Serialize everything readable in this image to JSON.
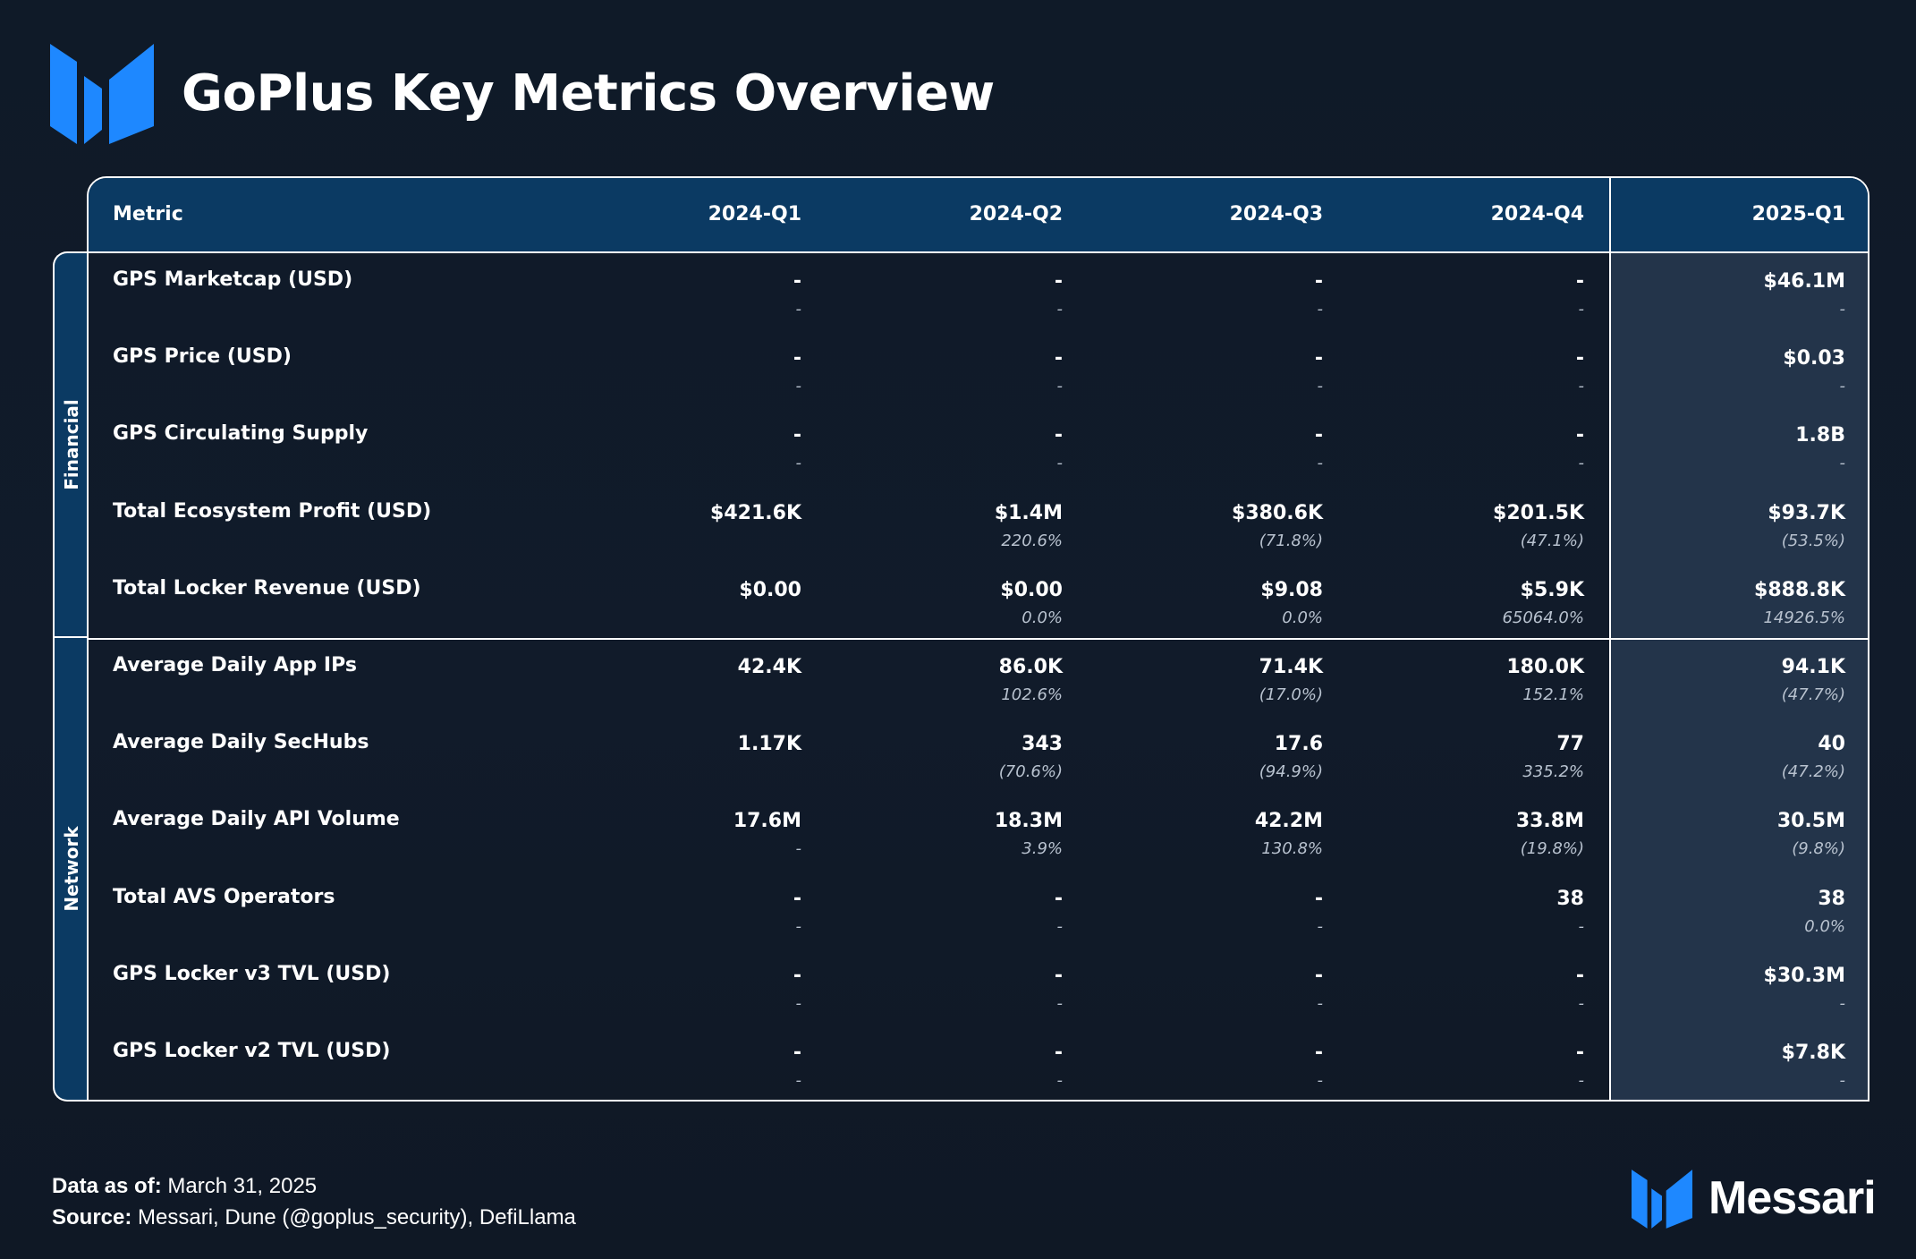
{
  "title": "GoPlus Key Metrics Overview",
  "header": {
    "metric": "Metric",
    "periods": [
      "2024-Q1",
      "2024-Q2",
      "2024-Q3",
      "2024-Q4",
      "2025-Q1"
    ]
  },
  "groups": {
    "financial": "Financial",
    "network": "Network"
  },
  "rows": [
    {
      "label": "GPS Marketcap (USD)",
      "cells": [
        {
          "v": "-",
          "c": "-"
        },
        {
          "v": "-",
          "c": "-"
        },
        {
          "v": "-",
          "c": "-"
        },
        {
          "v": "-",
          "c": "-"
        },
        {
          "v": "$46.1M",
          "c": "-"
        }
      ]
    },
    {
      "label": "GPS Price (USD)",
      "cells": [
        {
          "v": "-",
          "c": "-"
        },
        {
          "v": "-",
          "c": "-"
        },
        {
          "v": "-",
          "c": "-"
        },
        {
          "v": "-",
          "c": "-"
        },
        {
          "v": "$0.03",
          "c": "-"
        }
      ]
    },
    {
      "label": "GPS Circulating Supply",
      "cells": [
        {
          "v": "-",
          "c": "-"
        },
        {
          "v": "-",
          "c": "-"
        },
        {
          "v": "-",
          "c": "-"
        },
        {
          "v": "-",
          "c": "-"
        },
        {
          "v": "1.8B",
          "c": "-"
        }
      ]
    },
    {
      "label": "Total Ecosystem Profit (USD)",
      "cells": [
        {
          "v": "$421.6K",
          "c": ""
        },
        {
          "v": "$1.4M",
          "c": "220.6%"
        },
        {
          "v": "$380.6K",
          "c": "(71.8%)"
        },
        {
          "v": "$201.5K",
          "c": "(47.1%)"
        },
        {
          "v": "$93.7K",
          "c": "(53.5%)"
        }
      ]
    },
    {
      "label": "Total Locker Revenue (USD)",
      "cells": [
        {
          "v": "$0.00",
          "c": ""
        },
        {
          "v": "$0.00",
          "c": "0.0%"
        },
        {
          "v": "$9.08",
          "c": "0.0%"
        },
        {
          "v": "$5.9K",
          "c": "65064.0%"
        },
        {
          "v": "$888.8K",
          "c": "14926.5%"
        }
      ]
    },
    {
      "label": "Average Daily App IPs",
      "cells": [
        {
          "v": "42.4K",
          "c": ""
        },
        {
          "v": "86.0K",
          "c": "102.6%"
        },
        {
          "v": "71.4K",
          "c": "(17.0%)"
        },
        {
          "v": "180.0K",
          "c": "152.1%"
        },
        {
          "v": "94.1K",
          "c": "(47.7%)"
        }
      ]
    },
    {
      "label": "Average Daily SecHubs",
      "cells": [
        {
          "v": "1.17K",
          "c": ""
        },
        {
          "v": "343",
          "c": "(70.6%)"
        },
        {
          "v": "17.6",
          "c": "(94.9%)"
        },
        {
          "v": "77",
          "c": "335.2%"
        },
        {
          "v": "40",
          "c": "(47.2%)"
        }
      ]
    },
    {
      "label": "Average Daily API Volume",
      "cells": [
        {
          "v": "17.6M",
          "c": "-"
        },
        {
          "v": "18.3M",
          "c": "3.9%"
        },
        {
          "v": "42.2M",
          "c": "130.8%"
        },
        {
          "v": "33.8M",
          "c": "(19.8%)"
        },
        {
          "v": "30.5M",
          "c": "(9.8%)"
        }
      ]
    },
    {
      "label": "Total AVS Operators",
      "cells": [
        {
          "v": "-",
          "c": "-"
        },
        {
          "v": "-",
          "c": "-"
        },
        {
          "v": "-",
          "c": "-"
        },
        {
          "v": "38",
          "c": "-"
        },
        {
          "v": "38",
          "c": "0.0%"
        }
      ]
    },
    {
      "label": "GPS Locker v3 TVL (USD)",
      "cells": [
        {
          "v": "-",
          "c": "-"
        },
        {
          "v": "-",
          "c": "-"
        },
        {
          "v": "-",
          "c": "-"
        },
        {
          "v": "-",
          "c": "-"
        },
        {
          "v": "$30.3M",
          "c": "-"
        }
      ]
    },
    {
      "label": "GPS Locker v2 TVL (USD)",
      "cells": [
        {
          "v": "-",
          "c": "-"
        },
        {
          "v": "-",
          "c": "-"
        },
        {
          "v": "-",
          "c": "-"
        },
        {
          "v": "-",
          "c": "-"
        },
        {
          "v": "$7.8K",
          "c": "-"
        }
      ]
    }
  ],
  "footer": {
    "data_as_of_label": "Data as of:",
    "data_as_of_value": " March 31, 2025",
    "source_label": "Source:",
    "source_value": " Messari, Dune (@goplus_security), DefiLlama"
  },
  "brand": "Messari",
  "colors": {
    "background": "#111b2a",
    "header_bg": "#0b3a63",
    "highlight_col": "#23344a",
    "logo_blue": "#1e88ff"
  }
}
